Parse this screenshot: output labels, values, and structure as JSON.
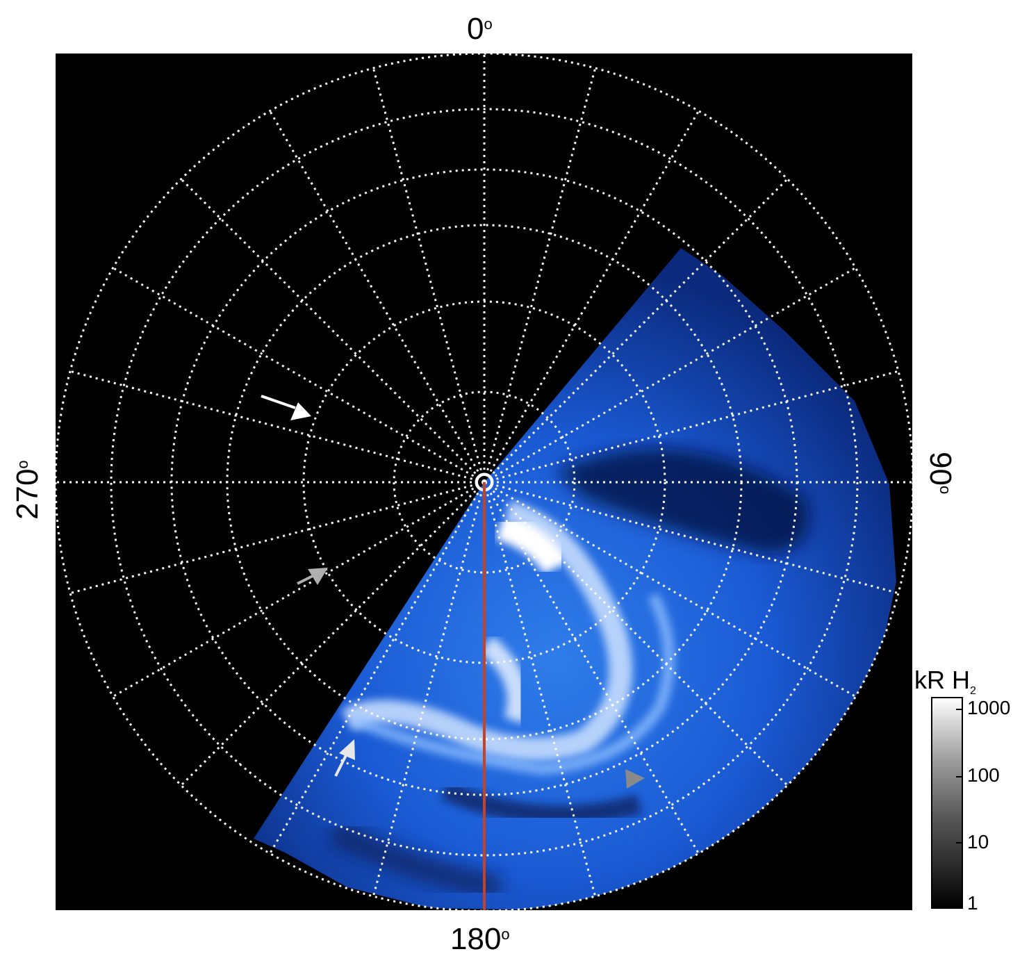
{
  "figure": {
    "labels": {
      "top": "0",
      "right": "90",
      "bottom": "180",
      "left": "270",
      "degree_mark": "o"
    },
    "colorbar": {
      "title_main": "kR H",
      "title_sub": "2",
      "ticks": [
        "1000",
        "100",
        "10",
        "1"
      ],
      "scale": "log"
    },
    "colors": {
      "background": "#000000",
      "aurora_low": "#0a2a8a",
      "aurora_mid": "#1e6fe6",
      "aurora_high": "#ffffff",
      "grid": "#ffffff",
      "meridian_line": "#c1442a",
      "arrow_white": "#ffffff",
      "arrow_gray": "#b0b0b0"
    },
    "annotations": {
      "arrows": [
        "arrow-white-upper-left",
        "arrow-gray-middle-left",
        "arrow-light-lower-left",
        "arrowhead-gray-lower-right"
      ]
    }
  }
}
